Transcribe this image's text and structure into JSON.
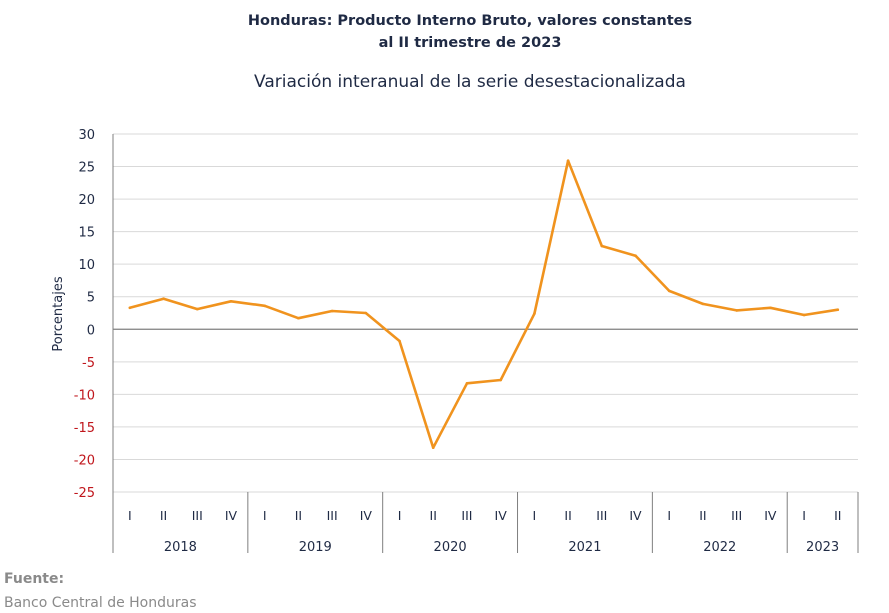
{
  "chart_data": {
    "type": "line",
    "title_line1": "Honduras: Producto Interno Bruto, valores constantes",
    "title_line2": "al II trimestre de 2023",
    "subtitle": "Variación interanual de la serie desestacionalizada",
    "ylabel": "Porcentajes",
    "xlabel": "",
    "ylim": [
      -25,
      30
    ],
    "yticks": [
      30,
      25,
      20,
      15,
      10,
      5,
      0,
      -5,
      -10,
      -15,
      -20,
      -25
    ],
    "grid": true,
    "quarter_labels": [
      "I",
      "II",
      "III",
      "IV",
      "I",
      "II",
      "III",
      "IV",
      "I",
      "II",
      "III",
      "IV",
      "I",
      "II",
      "III",
      "IV",
      "I",
      "II",
      "III",
      "IV",
      "I",
      "II"
    ],
    "years": [
      {
        "label": "2018",
        "quarters": 4
      },
      {
        "label": "2019",
        "quarters": 4
      },
      {
        "label": "2020",
        "quarters": 4
      },
      {
        "label": "2021",
        "quarters": 4
      },
      {
        "label": "2022",
        "quarters": 4
      },
      {
        "label": "2023",
        "quarters": 2
      }
    ],
    "series": [
      {
        "color": "#f0931e",
        "values": [
          3.3,
          4.7,
          3.1,
          4.3,
          3.6,
          1.7,
          2.8,
          2.5,
          -1.8,
          -18.2,
          -8.3,
          -7.8,
          2.4,
          25.9,
          12.8,
          11.3,
          5.9,
          3.9,
          2.9,
          3.3,
          2.2,
          3.0
        ]
      }
    ],
    "colors": {
      "negative_tick": "#c0161c",
      "axis": "#7f7f7f",
      "grid": "#d9d9d9"
    }
  },
  "footer": {
    "source_label": "Fuente:",
    "source_text": "Banco Central de Honduras"
  }
}
